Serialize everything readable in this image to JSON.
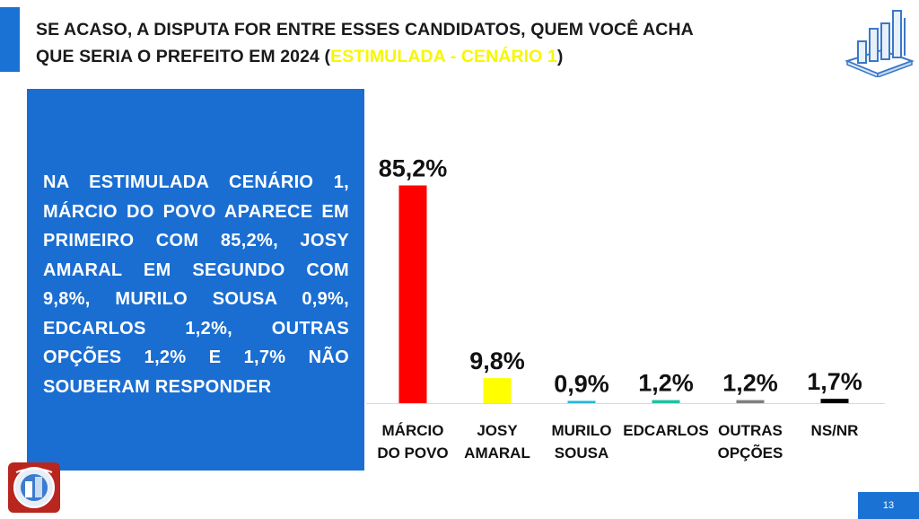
{
  "header": {
    "title_line1": "SE ACASO, A DISPUTA FOR ENTRE ESSES CANDIDATOS, QUEM VOCÊ ACHA",
    "title_line2_prefix": "QUE SERIA O PREFEITO EM 2024 (",
    "title_highlight": "ESTIMULADA - CENÁRIO 1",
    "title_line2_suffix": ")",
    "highlight_color": "#f7f700",
    "icon": "bar-chart-icon"
  },
  "summary": {
    "text": "NA ESTIMULADA CENÁRIO 1, MÁRCIO DO POVO APARECE EM PRIMEIRO COM 85,2%, JOSY AMARAL EM SEGUNDO COM 9,8%, MURILO SOUSA 0,9%, EDCARLOS 1,2%, OUTRAS OPÇÕES 1,2% E 1,7% NÃO SOUBERAM RESPONDER",
    "panel_color": "#1a6ed2"
  },
  "chart_data": {
    "type": "bar",
    "categories": [
      [
        "MÁRCIO",
        "DO POVO"
      ],
      [
        "JOSY",
        "AMARAL"
      ],
      [
        "MURILO",
        "SOUSA"
      ],
      [
        "EDCARLOS"
      ],
      [
        "OUTRAS",
        "OPÇÕES"
      ],
      [
        "NS/NR"
      ]
    ],
    "values": [
      85.2,
      9.8,
      0.9,
      1.2,
      1.2,
      1.7
    ],
    "value_labels": [
      "85,2%",
      "9,8%",
      "0,9%",
      "1,2%",
      "1,2%",
      "1,7%"
    ],
    "colors": [
      "#ff0000",
      "#ffff00",
      "#29b6d6",
      "#22c0a0",
      "#7f7f7f",
      "#000000"
    ],
    "ylim": [
      0,
      100
    ],
    "grid": false,
    "legend": "none"
  },
  "footer": {
    "page_number": "13",
    "logo": "pesquisa-logo-icon"
  }
}
